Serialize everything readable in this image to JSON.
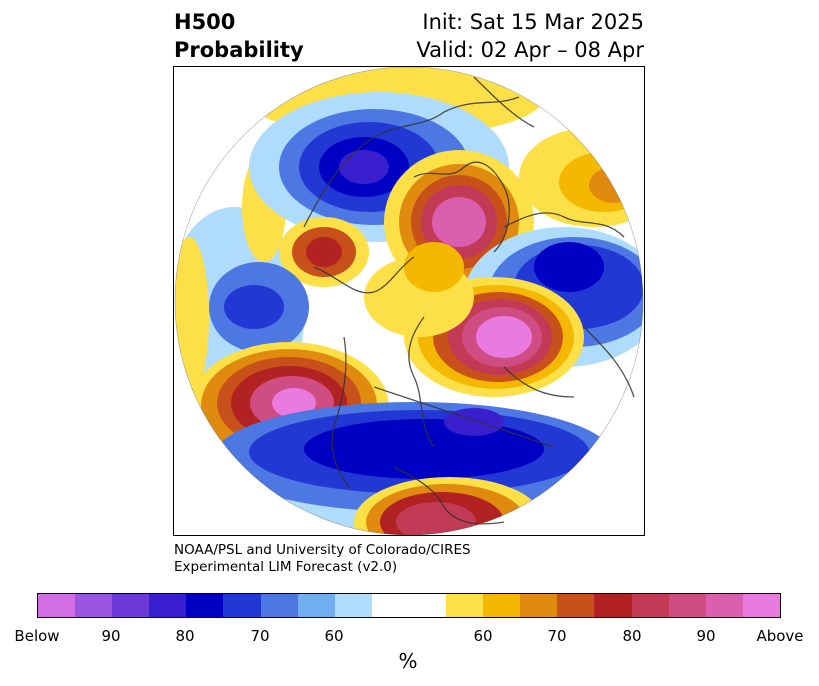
{
  "header": {
    "title_line1": "H500",
    "title_line2": "Probability",
    "init": "Init: Sat 15 Mar 2025",
    "valid": "Valid: 02 Apr – 08 Apr"
  },
  "credit": {
    "line1": "NOAA/PSL and University of Colorado/CIRES",
    "line2": "Experimental LIM Forecast (v2.0)"
  },
  "colorbar": {
    "colors": [
      "#d16ee3",
      "#9a55e0",
      "#6c3ad6",
      "#3a1fcf",
      "#0000c4",
      "#2238d4",
      "#4d78e3",
      "#70aef0",
      "#aedcfa",
      "#ffffff",
      "#ffffff",
      "#fde047",
      "#f5b800",
      "#e08b10",
      "#c8501a",
      "#b22222",
      "#c23a55",
      "#cf4d83",
      "#da5fae",
      "#e97ae0"
    ],
    "labels": [
      "Below",
      "90",
      "80",
      "70",
      "60",
      "60",
      "70",
      "80",
      "90",
      "Above"
    ],
    "unit": "%"
  }
}
